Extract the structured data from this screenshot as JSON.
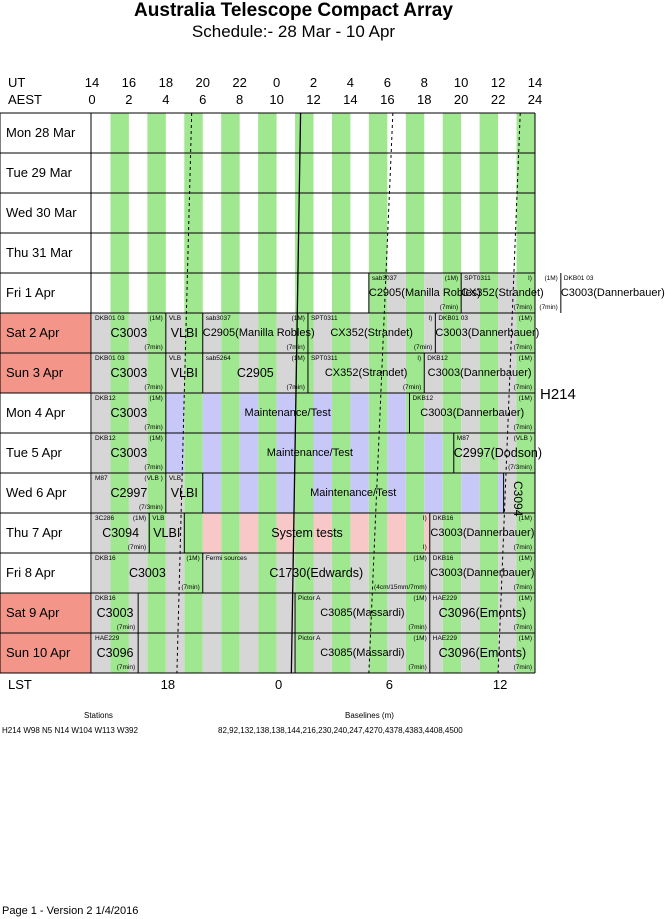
{
  "header": {
    "title": "Australia Telescope Compact Array",
    "subtitle": "Schedule:- 28 Mar - 10 Apr",
    "ut_label": "UT",
    "aest_label": "AEST",
    "ut_ticks": [
      "14",
      "16",
      "18",
      "20",
      "22",
      "0",
      "2",
      "4",
      "6",
      "8",
      "10",
      "12",
      "14"
    ],
    "aest_ticks": [
      "0",
      "2",
      "4",
      "6",
      "8",
      "10",
      "12",
      "14",
      "16",
      "18",
      "20",
      "22",
      "24"
    ]
  },
  "days": [
    {
      "label": "Mon  28 Mar",
      "weekend": false
    },
    {
      "label": "Tue  29 Mar",
      "weekend": false
    },
    {
      "label": "Wed  30 Mar",
      "weekend": false
    },
    {
      "label": "Thu  31 Mar",
      "weekend": false
    },
    {
      "label": "Fri    1  Apr",
      "weekend": false
    },
    {
      "label": "Sat    2  Apr",
      "weekend": true
    },
    {
      "label": "Sun    3  Apr",
      "weekend": true
    },
    {
      "label": "Mon   4  Apr",
      "weekend": false
    },
    {
      "label": "Tue    5  Apr",
      "weekend": false
    },
    {
      "label": "Wed   6  Apr",
      "weekend": false
    },
    {
      "label": "Thu    7  Apr",
      "weekend": false
    },
    {
      "label": "Fri    8  Apr",
      "weekend": false
    },
    {
      "label": "Sat    9  Apr",
      "weekend": true
    },
    {
      "label": "Sun   10 Apr",
      "weekend": true
    }
  ],
  "config": "H214",
  "lst": {
    "label": "LST",
    "ticks": [
      "18",
      "0",
      "6",
      "12"
    ]
  },
  "stations": {
    "heading": "Stations",
    "value": "H214   W98 N5 N14  W104  W113 W392"
  },
  "baselines": {
    "heading": "Baselines (m)",
    "value": "82,92,132,138,138,144,216,230,240,247,4270,4378,4383,4408,4500"
  },
  "footer": "Page 1 - Version 2  1/4/2016",
  "colors": {
    "weekend": "#f4958a",
    "green": "#a0e890",
    "grey": "#d6d6d6",
    "blue": "#c8c8f8",
    "pink": "#f8c8c8"
  },
  "blocks": [
    {
      "day": 4,
      "start": 15.0,
      "end": 20.0,
      "code": "C2905(Manilla Robles)",
      "source": "sab3037",
      "array": "(1M)",
      "note": "(7min)"
    },
    {
      "day": 4,
      "start": 20.0,
      "end": 25.4,
      "code": "CX352(Strandet)",
      "source": "SPT0311",
      "array": "I)",
      "note": "(7min)"
    },
    {
      "day": 4,
      "start": 25.4,
      "end": 30.2,
      "code": "C3003(Dannerbauer)",
      "source": "DKB01 03",
      "array": "(1M)",
      "note": "(7min)"
    },
    {
      "day": 5,
      "start": 0.0,
      "end": 4.0,
      "code": "C3003",
      "source": "DKB01 03",
      "array": "(1M)",
      "note": "(7min)"
    },
    {
      "day": 5,
      "start": 4.0,
      "end": 6.0,
      "code": "VLBI",
      "source": "VLB",
      "array": "",
      "note": ""
    },
    {
      "day": 5,
      "start": 6.0,
      "end": 11.7,
      "code": "C2905(Manilla Robles)",
      "source": "sab3037",
      "array": "(1M)",
      "note": "(7min)"
    },
    {
      "day": 5,
      "start": 11.7,
      "end": 18.6,
      "code": "CX352(Strandet)",
      "source": "SPT0311",
      "array": "I)",
      "note": "(7min)"
    },
    {
      "day": 5,
      "start": 18.6,
      "end": 24.0,
      "code": "C3003(Dannerbauer)",
      "source": "DKB01 03",
      "array": "(1M)",
      "note": "(7min)"
    },
    {
      "day": 6,
      "start": 0.0,
      "end": 4.0,
      "code": "C3003",
      "source": "DKB01 03",
      "array": "",
      "note": "(7min)"
    },
    {
      "day": 6,
      "start": 4.0,
      "end": 6.0,
      "code": "VLBI",
      "source": "VLB",
      "array": "",
      "note": ""
    },
    {
      "day": 6,
      "start": 6.0,
      "end": 11.7,
      "code": "C2905",
      "source": "sab5264",
      "array": "(1M)",
      "note": "(7min)"
    },
    {
      "day": 6,
      "start": 11.7,
      "end": 18.0,
      "code": "CX352(Strandet)",
      "source": "SPT0311",
      "array": "I)",
      "note": "(7min)"
    },
    {
      "day": 6,
      "start": 18.0,
      "end": 24.0,
      "code": "C3003(Dannerbauer)",
      "source": "DKB12",
      "array": "(1M)",
      "note": "(7min)"
    },
    {
      "day": 7,
      "start": 0.0,
      "end": 4.0,
      "code": "C3003",
      "source": "DKB12",
      "array": "(1M)",
      "note": "(7min)"
    },
    {
      "day": 7,
      "start": 4.0,
      "end": 17.2,
      "code": "Maintenance/Test",
      "source": "",
      "array": "",
      "note": ""
    },
    {
      "day": 7,
      "start": 17.2,
      "end": 24.0,
      "code": "C3003(Dannerbauer)",
      "source": "DKB12",
      "array": "(1M)",
      "note": "(7min)"
    },
    {
      "day": 8,
      "start": 0.0,
      "end": 4.0,
      "code": "C3003",
      "source": "DKB12",
      "array": "(1M)",
      "note": "(7min)"
    },
    {
      "day": 8,
      "start": 4.0,
      "end": 19.6,
      "code": "Maintenance/Test",
      "source": "",
      "array": "",
      "note": ""
    },
    {
      "day": 8,
      "start": 19.6,
      "end": 24.0,
      "code": "C2997(Dodson)",
      "source": "M87",
      "array": "(VLB )",
      "note": "(7/3min)"
    },
    {
      "day": 9,
      "start": 0.0,
      "end": 4.0,
      "code": "C2997",
      "source": "M87",
      "array": "(VLB )",
      "note": "(7/3min)"
    },
    {
      "day": 9,
      "start": 4.0,
      "end": 6.0,
      "code": "VLBI",
      "source": "VLB",
      "array": "",
      "note": ""
    },
    {
      "day": 9,
      "start": 6.0,
      "end": 22.3,
      "code": "Maintenance/Test",
      "source": "",
      "array": "",
      "note": ""
    },
    {
      "day": 9,
      "start": 22.3,
      "end": 24.0,
      "code": "C3094",
      "source": "",
      "array": "",
      "note": ""
    },
    {
      "day": 10,
      "start": 0.0,
      "end": 3.1,
      "code": "C3094",
      "source": "3C286",
      "array": "(1M)",
      "note": "(7min)"
    },
    {
      "day": 10,
      "start": 3.1,
      "end": 5.0,
      "code": "VLBI",
      "source": "VLB",
      "array": "",
      "note": ""
    },
    {
      "day": 10,
      "start": 5.0,
      "end": 18.3,
      "code": "System tests",
      "source": "",
      "array": "I)",
      "note": "I)"
    },
    {
      "day": 10,
      "start": 18.3,
      "end": 24.0,
      "code": "C3003(Dannerbauer)",
      "source": "DKB16",
      "array": "(1M)",
      "note": "(7min)"
    },
    {
      "day": 11,
      "start": 0.0,
      "end": 6.0,
      "code": "C3003",
      "source": "DKB16",
      "array": "(1M)",
      "note": "(7min)"
    },
    {
      "day": 11,
      "start": 6.0,
      "end": 18.3,
      "code": "C1730(Edwards)",
      "source": "Fermi sources",
      "array": "(1M)",
      "note": "(4cm/15mm/7mm)"
    },
    {
      "day": 11,
      "start": 18.3,
      "end": 24.0,
      "code": "C3003(Dannerbauer)",
      "source": "DKB16",
      "array": "(1M)",
      "note": "(7min)"
    },
    {
      "day": 12,
      "start": 0.0,
      "end": 2.5,
      "code": "C3003",
      "source": "DKB16",
      "array": "",
      "note": "(7min)"
    },
    {
      "day": 12,
      "start": 2.5,
      "end": 11.0,
      "code": "",
      "source": "",
      "array": "",
      "note": ""
    },
    {
      "day": 12,
      "start": 11.0,
      "end": 18.3,
      "code": "C3085(Massardi)",
      "source": "Pictor A",
      "array": "(1M)",
      "note": "(7min)"
    },
    {
      "day": 12,
      "start": 18.3,
      "end": 24.0,
      "code": "C3096(Emonts)",
      "source": "HAE229",
      "array": "(1M)",
      "note": "(7min)"
    },
    {
      "day": 13,
      "start": 0.0,
      "end": 2.5,
      "code": "C3096",
      "source": "HAE229",
      "array": "",
      "note": "(7min)"
    },
    {
      "day": 13,
      "start": 2.5,
      "end": 11.0,
      "code": "",
      "source": "",
      "array": "",
      "note": ""
    },
    {
      "day": 13,
      "start": 11.0,
      "end": 18.3,
      "code": "C3085(Massardi)",
      "source": "Pictor A",
      "array": "(1M)",
      "note": "(7min)"
    },
    {
      "day": 13,
      "start": 18.3,
      "end": 24.0,
      "code": "C3096(Emonts)",
      "source": "HAE229",
      "array": "(1M)",
      "note": "(7min)"
    }
  ]
}
